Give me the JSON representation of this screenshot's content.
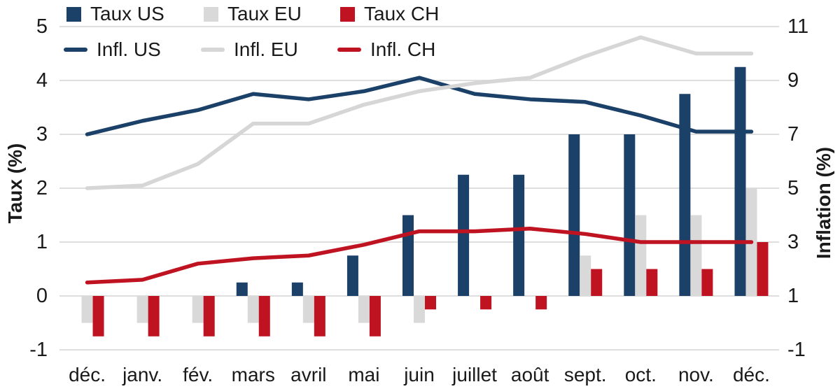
{
  "chart_data": {
    "type": "bar",
    "subtype": "grouped-bars-with-lines-dual-axis",
    "categories": [
      "déc.",
      "janv.",
      "fév.",
      "mars",
      "avril",
      "mai",
      "juin",
      "juillet",
      "août",
      "sept.",
      "oct.",
      "nov.",
      "déc."
    ],
    "left_axis": {
      "title": "Taux (%)",
      "min": -1,
      "max": 5,
      "ticks": [
        5,
        4,
        3,
        2,
        1,
        0,
        -1
      ]
    },
    "right_axis": {
      "title": "Inflation (%)",
      "min": -1,
      "max": 11,
      "ticks": [
        11,
        9,
        7,
        5,
        3,
        1,
        -1
      ]
    },
    "bar_series": [
      {
        "name": "Taux US",
        "color": "#1b4168",
        "axis": "left",
        "values": [
          0,
          0,
          0,
          0.25,
          0.25,
          0.75,
          1.5,
          2.25,
          2.25,
          3,
          3,
          3.75,
          4.25
        ]
      },
      {
        "name": "Taux EU",
        "color": "#d9d9d9",
        "axis": "left",
        "values": [
          -0.5,
          -0.5,
          -0.5,
          -0.5,
          -0.5,
          -0.5,
          -0.5,
          0,
          0,
          0.75,
          1.5,
          1.5,
          2
        ]
      },
      {
        "name": "Taux CH",
        "color": "#bf1322",
        "axis": "left",
        "values": [
          -0.75,
          -0.75,
          -0.75,
          -0.75,
          -0.75,
          -0.75,
          -0.25,
          -0.25,
          -0.25,
          0.5,
          0.5,
          0.5,
          1
        ]
      }
    ],
    "line_series": [
      {
        "name": "Infl. US",
        "color": "#1b4168",
        "axis": "right",
        "values": [
          7.0,
          7.5,
          7.9,
          8.5,
          8.3,
          8.6,
          9.1,
          8.5,
          8.3,
          8.2,
          7.7,
          7.1,
          7.1
        ]
      },
      {
        "name": "Infl. EU",
        "color": "#d6d6d6",
        "axis": "right",
        "values": [
          5.0,
          5.1,
          5.9,
          7.4,
          7.4,
          8.1,
          8.6,
          8.9,
          9.1,
          9.9,
          10.6,
          10.0,
          10.0
        ]
      },
      {
        "name": "Infl. CH",
        "color": "#bf1322",
        "axis": "right",
        "values": [
          1.5,
          1.6,
          2.2,
          2.4,
          2.5,
          2.9,
          3.4,
          3.4,
          3.5,
          3.3,
          3.0,
          3.0,
          3.0
        ]
      }
    ],
    "grid": true,
    "legend_position": "top-left"
  },
  "colors": {
    "background": "#ffffff",
    "gridline": "#dedede",
    "text": "#1a1a1a"
  }
}
